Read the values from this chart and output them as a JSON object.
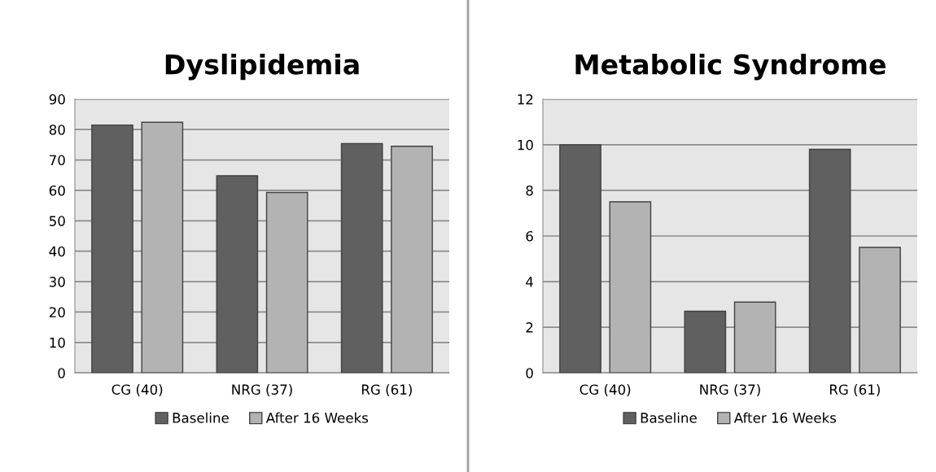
{
  "chart_data": [
    {
      "type": "bar",
      "title": "Dyslipidemia",
      "categories": [
        "CG (40)",
        "NRG (37)",
        "RG (61)"
      ],
      "series": [
        {
          "name": "Baseline",
          "color": "#606060",
          "values": [
            81.5,
            64.8,
            75.4
          ]
        },
        {
          "name": "After 16 Weeks",
          "color": "#b3b3b3",
          "values": [
            82.4,
            59.3,
            74.5
          ]
        }
      ],
      "ylim": [
        0,
        90
      ],
      "yticks": [
        0,
        10,
        20,
        30,
        40,
        50,
        60,
        70,
        80,
        90
      ],
      "grid": "y",
      "legend": "bottom"
    },
    {
      "type": "bar",
      "title": "Metabolic Syndrome",
      "categories": [
        "CG (40)",
        "NRG (37)",
        "RG (61)"
      ],
      "series": [
        {
          "name": "Baseline",
          "color": "#606060",
          "values": [
            10.0,
            2.7,
            9.8
          ]
        },
        {
          "name": "After 16 Weeks",
          "color": "#b3b3b3",
          "values": [
            7.5,
            3.1,
            5.5
          ]
        }
      ],
      "ylim": [
        0,
        12
      ],
      "yticks": [
        0,
        2,
        4,
        6,
        8,
        10,
        12
      ],
      "grid": "y",
      "legend": "bottom"
    }
  ]
}
